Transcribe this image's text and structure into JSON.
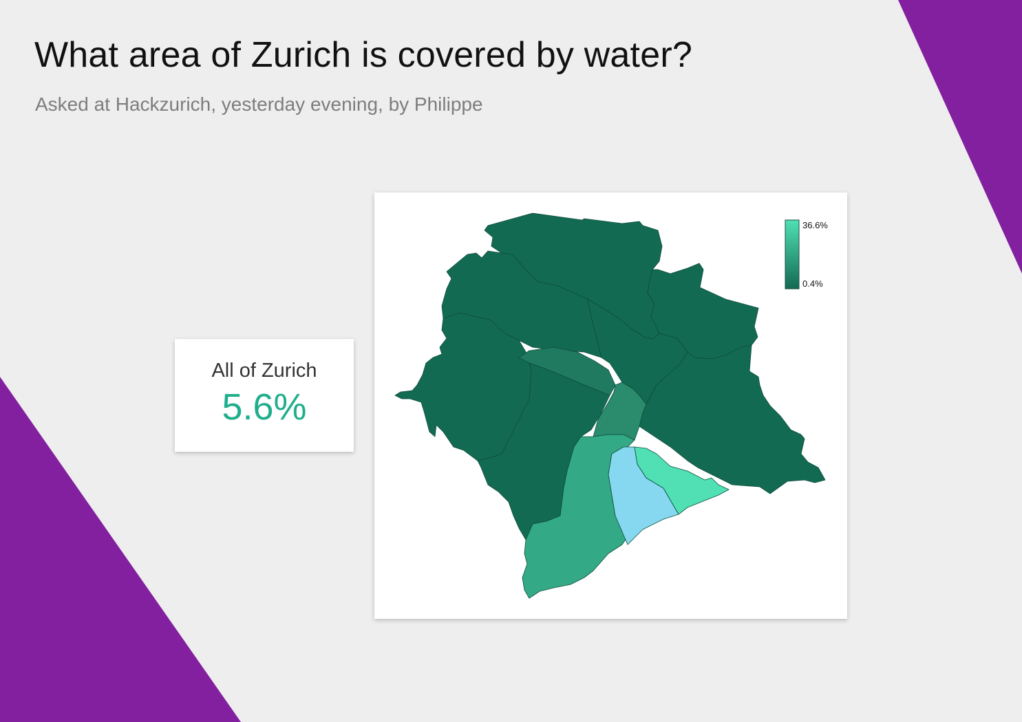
{
  "header": {
    "title": "What area of Zurich is covered by water?",
    "subtitle": "Asked at Hackzurich, yesterday evening, by Philippe"
  },
  "summary": {
    "label": "All of Zurich",
    "value": "5.6%"
  },
  "map": {
    "legend": {
      "max_label": "36.6%",
      "min_label": "0.4%"
    },
    "colors": {
      "scale_min": "#136a52",
      "scale_max": "#50e0b4",
      "lake": "#85d8f0",
      "accent": "#82209f",
      "background": "#eeeeee"
    }
  }
}
